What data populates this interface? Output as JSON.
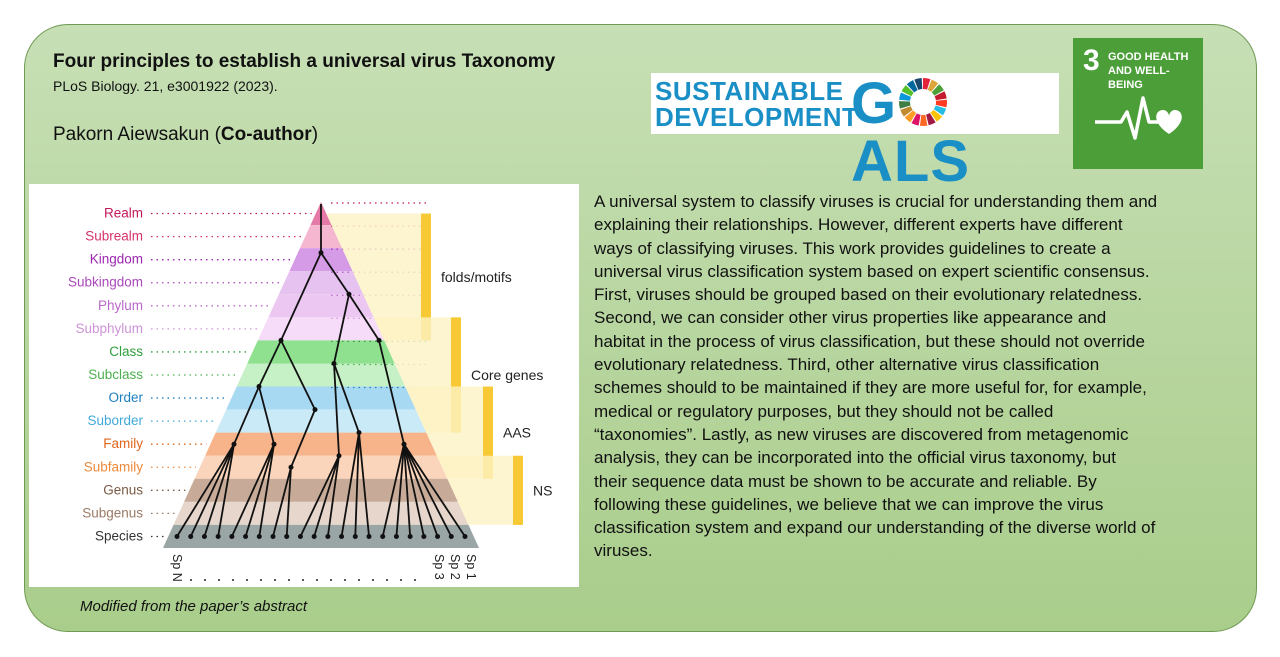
{
  "title": "Four principles to establish a universal virus Taxonomy",
  "citation": "PLoS Biology. 21, e3001922 (2023).",
  "author_name": "Pakorn Aiewsakun (",
  "author_role": "Co-author",
  "author_close": ")",
  "sdg_logo": {
    "line1": "SUSTAINABLE",
    "line2": "DEVELOPMENT",
    "goals_g": "G",
    "goals_rest": "ALS",
    "color": "#1a8fc6"
  },
  "sdg_goal": {
    "number": "3",
    "line1": "GOOD HEALTH",
    "line2": "AND WELL-BEING",
    "color": "#4c9f38"
  },
  "figure": {
    "ranks": [
      {
        "label": "Realm",
        "color": "#c2185b",
        "band": "#e57aa8"
      },
      {
        "label": "Subrealm",
        "color": "#d6336c",
        "band": "#f4b7cf"
      },
      {
        "label": "Kingdom",
        "color": "#9c27b0",
        "band": "#d69be6"
      },
      {
        "label": "Subkingdom",
        "color": "#ab47bc",
        "band": "#e5c2ef"
      },
      {
        "label": "Phylum",
        "color": "#ba68c8",
        "band": "#ebc7f1"
      },
      {
        "label": "Subphylum",
        "color": "#ce93d8",
        "band": "#f6dcf8"
      },
      {
        "label": "Class",
        "color": "#2e9e3b",
        "band": "#8fe08f"
      },
      {
        "label": "Subclass",
        "color": "#4caf50",
        "band": "#c6f0c6"
      },
      {
        "label": "Order",
        "color": "#1e7fbf",
        "band": "#a8d9f2"
      },
      {
        "label": "Suborder",
        "color": "#3fa9d9",
        "band": "#cbeaf7"
      },
      {
        "label": "Family",
        "color": "#e0661c",
        "band": "#f7b48a"
      },
      {
        "label": "Subfamily",
        "color": "#ee8a3b",
        "band": "#fad5bb"
      },
      {
        "label": "Genus",
        "color": "#7b5a45",
        "band": "#c7ab98"
      },
      {
        "label": "Subgenus",
        "color": "#9a7b66",
        "band": "#e6d6cb"
      },
      {
        "label": "Species",
        "color": "#333333",
        "band": "#9aa5a5"
      }
    ],
    "brackets": [
      "folds/motifs",
      "Core genes",
      "AAS",
      "NS"
    ],
    "species_left": "Sp N",
    "species_right": [
      "Sp 1",
      "Sp 2",
      "Sp 3"
    ]
  },
  "abstract_lines": [
    "A universal system to classify viruses is crucial for understanding them and",
    "explaining their relationships. However, different experts have different",
    "ways of classifying viruses. This work provides guidelines to create a",
    "universal virus classification system based on expert scientific consensus.",
    "First, viruses should be grouped based on their evolutionary relatedness.",
    "Second, we can consider other virus properties like appearance and",
    "habitat in the process of virus classification, but these should not override",
    "evolutionary relatedness. Third, other alternative virus classification",
    "schemes should to be maintained if they are more useful for, for example,",
    "medical or regulatory purposes, but they should not be called",
    "“taxonomies”. Lastly, as new viruses are discovered from metagenomic",
    "analysis, they can be incorporated into the official virus taxonomy, but",
    "their sequence data must be shown to be accurate and reliable. By",
    "following these guidelines, we believe that we can improve the virus",
    "classification system and expand our understanding of the diverse world of",
    "viruses."
  ],
  "caption": "Modified from the paper’s abstract"
}
